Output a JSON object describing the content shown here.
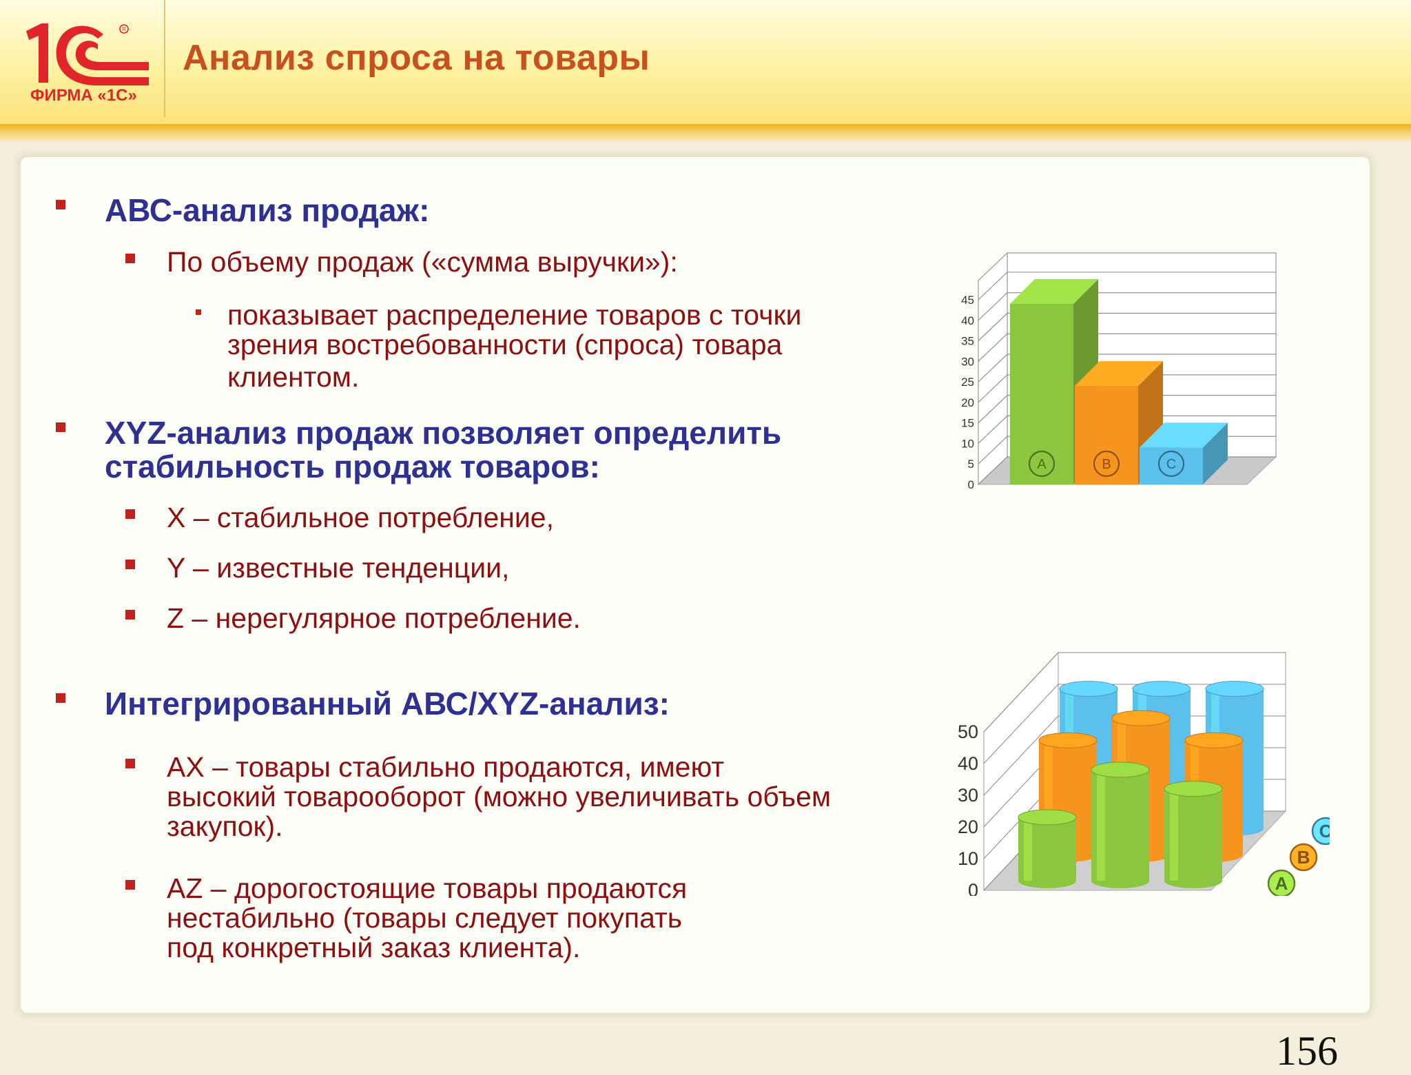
{
  "header": {
    "logo_text": "ФИРМА «1С»",
    "logo_mark": "1С",
    "title": "Анализ спроса на товары"
  },
  "content": {
    "abc": {
      "heading": "АВС-анализ продаж:",
      "sub": "По объему продаж («сумма выручки»):",
      "detail": [
        "показывает распределение товаров с точки",
        "зрения востребованности (спроса) товара",
        "клиентом."
      ]
    },
    "xyz": {
      "heading": [
        "XYZ-анализ продаж позволяет определить",
        "стабильность продаж товаров:"
      ],
      "items": [
        "X – стабильное потребление,",
        "Y – известные тенденции,",
        "Z – нерегулярное потребление."
      ]
    },
    "integrated": {
      "heading": "Интегрированный АВС/XYZ-анализ:",
      "ax": [
        "АХ – товары стабильно продаются, имеют",
        "высокий товарооборот (можно увеличивать объем",
        "закупок)."
      ],
      "az": [
        "АZ – дорогостоящие товары продаются",
        "нестабильно (товары следует покупать",
        "под конкретный заказ клиента)."
      ]
    }
  },
  "chart_data": [
    {
      "type": "bar",
      "categories": [
        "A",
        "B",
        "C"
      ],
      "values": [
        44,
        24,
        9
      ],
      "colors": [
        "#8cc63f",
        "#f7941d",
        "#5bc0eb"
      ],
      "y_ticks": [
        0,
        5,
        10,
        15,
        20,
        25,
        30,
        35,
        40,
        45
      ],
      "ylim": [
        0,
        45
      ],
      "grid": true
    },
    {
      "type": "bar",
      "style": "3d-cylinder",
      "series": [
        {
          "name": "A",
          "values": [
            20,
            35,
            29
          ],
          "color": "#8cc63f"
        },
        {
          "name": "B",
          "values": [
            36,
            43,
            36
          ],
          "color": "#f7941d"
        },
        {
          "name": "C",
          "values": [
            44,
            44,
            44
          ],
          "color": "#5bc0eb"
        }
      ],
      "y_ticks": [
        0,
        10,
        20,
        30,
        40,
        50
      ],
      "ylim": [
        0,
        50
      ],
      "grid": true
    }
  ],
  "page_number": "156"
}
